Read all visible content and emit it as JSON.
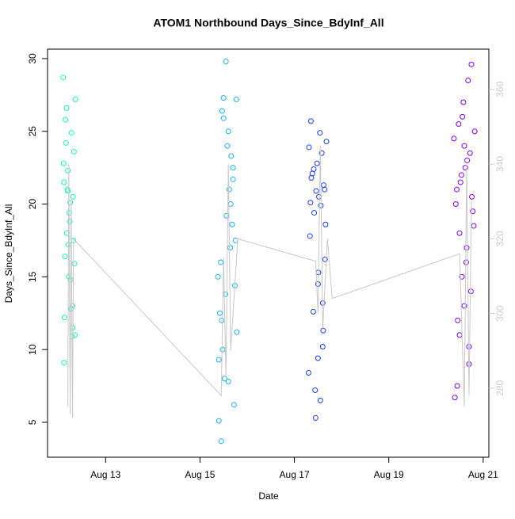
{
  "chart_data": {
    "type": "scatter",
    "title": "ATOM1 Northbound Days_Since_BdyInf_All",
    "xlabel": "Date",
    "ylabel": "Days_Since_BdyInf_All",
    "xlim": [
      11.77,
      21.12
    ],
    "ylim": [
      2.6,
      30.65
    ],
    "y2lim": [
      261.5,
      370.8
    ],
    "xticks": [
      {
        "value": 13,
        "label": "Aug 13"
      },
      {
        "value": 15,
        "label": "Aug 15"
      },
      {
        "value": 17,
        "label": "Aug 17"
      },
      {
        "value": 19,
        "label": "Aug 19"
      },
      {
        "value": 21,
        "label": "Aug 21"
      }
    ],
    "yticks": [
      5,
      10,
      15,
      20,
      25,
      30
    ],
    "y2ticks": [
      280,
      300,
      320,
      340,
      360
    ],
    "series": [
      {
        "color": "#20f0b0",
        "x": [
          12.1,
          12.12,
          12.15,
          12.18,
          12.2,
          12.22,
          12.25,
          12.28,
          12.3,
          12.32,
          12.35,
          12.12,
          12.17,
          12.23,
          12.27,
          12.33,
          12.14,
          12.19,
          12.26,
          12.31,
          12.36,
          12.11,
          12.21,
          12.29,
          12.24,
          12.16,
          12.34,
          12.13,
          12.2,
          12.3
        ],
        "values": [
          28.7,
          21.5,
          25.8,
          18,
          22.3,
          15,
          20.1,
          24.9,
          13,
          17.5,
          11,
          9.1,
          26.6,
          19.4,
          12.8,
          23.6,
          16.4,
          21,
          14.8,
          20.5,
          27.2,
          22.8,
          17.2,
          10.9,
          18.8,
          24.2,
          15.9,
          12.2,
          20.9,
          11.5
        ]
      },
      {
        "color": "#1ab2f0",
        "x": [
          15.55,
          15.45,
          15.4,
          15.5,
          15.6,
          15.7,
          15.65,
          15.75,
          15.38,
          15.42,
          15.48,
          15.52,
          15.72,
          15.58,
          15.62,
          15.68,
          15.44,
          15.54,
          15.78,
          15.4,
          15.47,
          15.66,
          15.56,
          15.74,
          15.6,
          15.5,
          15.7,
          15.64,
          15.46,
          15.77
        ],
        "values": [
          29.8,
          3.7,
          5.1,
          27.3,
          25,
          22.5,
          20,
          17.5,
          15,
          12.5,
          10,
          8,
          6.2,
          24,
          21,
          18.6,
          16,
          13.8,
          11.2,
          9.3,
          26.4,
          23.3,
          19.2,
          14.4,
          7.8,
          25.9,
          21.7,
          17,
          12,
          27.2
        ]
      },
      {
        "color": "#1a3cf5",
        "x": [
          17.35,
          17.45,
          17.55,
          17.3,
          17.6,
          17.4,
          17.5,
          17.65,
          17.33,
          17.42,
          17.52,
          17.62,
          17.38,
          17.48,
          17.58,
          17.68,
          17.36,
          17.46,
          17.56,
          17.66,
          17.31,
          17.41,
          17.51,
          17.61,
          17.44,
          17.54,
          17.64,
          17.34,
          17.6,
          17.5
        ],
        "values": [
          25.7,
          5.3,
          6.5,
          8.4,
          10.2,
          12.6,
          14.5,
          16.2,
          17.8,
          19.4,
          20.5,
          21.3,
          22.1,
          22.8,
          23.5,
          24.3,
          21.8,
          20.9,
          19.9,
          18.6,
          23.9,
          22.4,
          15.3,
          11.3,
          7.2,
          24.9,
          21,
          20.1,
          13.2,
          9.4
        ]
      },
      {
        "color": "#8000ff",
        "x": [
          20.75,
          20.4,
          20.45,
          20.7,
          20.5,
          20.6,
          20.55,
          20.65,
          20.8,
          20.42,
          20.52,
          20.62,
          20.72,
          20.38,
          20.48,
          20.58,
          20.68,
          20.78,
          20.44,
          20.54,
          20.64,
          20.74,
          20.46,
          20.56,
          20.66,
          20.76,
          20.5,
          20.6,
          20.7,
          20.82
        ],
        "values": [
          29.6,
          6.7,
          7.5,
          9,
          11,
          13,
          15,
          17,
          18.5,
          20,
          21.5,
          22.5,
          23.5,
          24.5,
          25.5,
          27,
          28.5,
          19.5,
          21,
          22,
          16,
          14,
          12,
          26,
          23,
          20.5,
          18,
          24,
          10.2,
          25
        ]
      },
      {
        "color": "#c8c8c8",
        "type": "line",
        "axis": "y2",
        "x": [
          12.2,
          12.22,
          12.25,
          12.27,
          12.3,
          12.32,
          15.45,
          15.5,
          15.55,
          15.6,
          15.65,
          15.8,
          17.45,
          17.5,
          17.55,
          17.6,
          17.7,
          17.8,
          20.5,
          20.6,
          20.65,
          20.7,
          20.75
        ],
        "values": [
          275,
          340,
          273,
          330,
          272,
          320,
          278,
          315,
          283,
          340,
          290,
          320,
          314,
          300,
          345,
          296,
          320,
          304,
          316,
          275,
          340,
          278,
          330
        ]
      }
    ]
  }
}
